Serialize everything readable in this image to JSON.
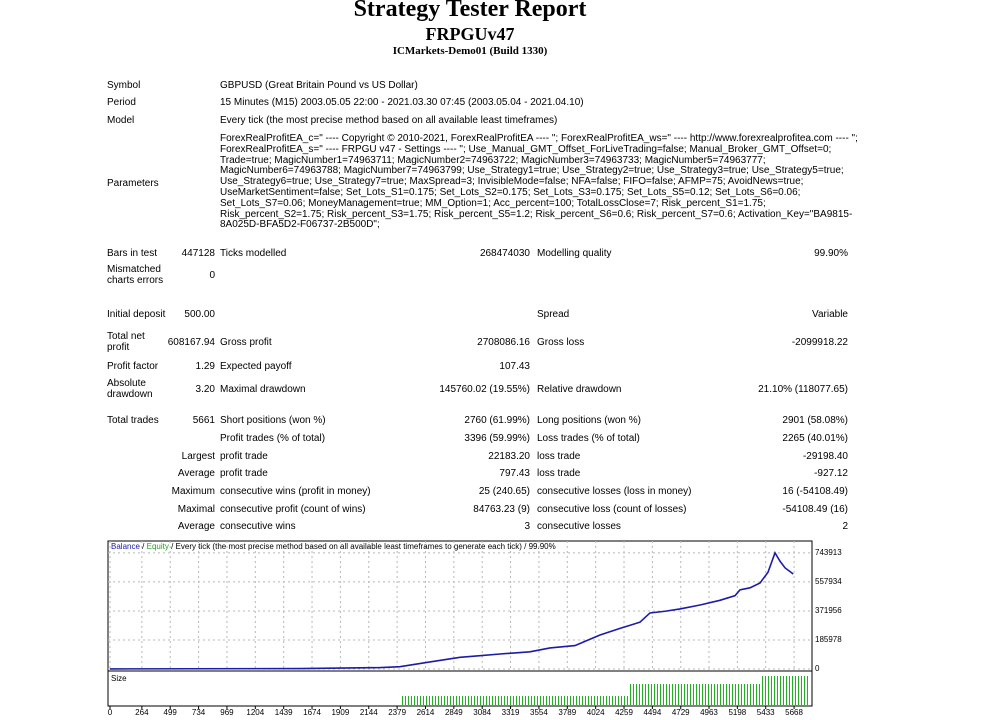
{
  "header": {
    "title": "Strategy Tester Report",
    "expert": "FRPGUv47",
    "server": "ICMarkets-Demo01 (Build 1330)"
  },
  "info": [
    {
      "label": "Symbol",
      "value": "GBPUSD (Great Britain Pound vs US Dollar)"
    },
    {
      "label": "Period",
      "value": "15 Minutes (M15) 2003.05.05 22:00 - 2021.03.30 07:45 (2003.05.04 - 2021.04.10)"
    },
    {
      "label": "Model",
      "value": "Every tick (the most precise method based on all available least timeframes)"
    }
  ],
  "parameters": {
    "label": "Parameters",
    "lines": [
      "ForexRealProfitEA_c=\" ---- Copyright © 2010-2021, ForexRealProfitEA ---- \"; ForexRealProfitEA_ws=\" ---- http://www.forexrealprofitea.com ---- \";",
      "ForexRealProfitEA_s=\" ---- FRPGU v47 - Settings ---- \"; Use_Manual_GMT_Offset_ForLiveTrading=false; Manual_Broker_GMT_Offset=0;",
      "Trade=true; MagicNumber1=74963711; MagicNumber2=74963722; MagicNumber3=74963733; MagicNumber5=74963777;",
      "MagicNumber6=74963788; MagicNumber7=74963799; Use_Strategy1=true; Use_Strategy2=true; Use_Strategy3=true; Use_Strategy5=true;",
      "Use_Strategy6=true; Use_Strategy7=true; MaxSpread=3; InvisibleMode=false; NFA=false; FIFO=false; AFMP=75; AvoidNews=true;",
      "UseMarketSentiment=false; Set_Lots_S1=0.175; Set_Lots_S2=0.175; Set_Lots_S3=0.175; Set_Lots_S5=0.12; Set_Lots_S6=0.06;",
      "Set_Lots_S7=0.06; MoneyManagement=true; MM_Option=1; Acc_percent=100; TotalLossClose=7; Risk_percent_S1=1.75;",
      "Risk_percent_S2=1.75; Risk_percent_S3=1.75; Risk_percent_S5=1.2; Risk_percent_S6=0.6; Risk_percent_S7=0.6; Activation_Key=\"BA9815-",
      "8A025D-BFA5D2-F06737-2B500D\";"
    ]
  },
  "stats": [
    {
      "a": "Bars in test",
      "b": "447128",
      "c": "Ticks modelled",
      "d": "268474030",
      "e": "Modelling quality",
      "f": "99.90%"
    },
    {
      "a": "Mismatched charts errors",
      "b": "0"
    },
    {
      "a": "Initial deposit",
      "b": "500.00",
      "e": "Spread",
      "f": "Variable"
    },
    {
      "a": "Total net profit",
      "b": "608167.94",
      "c": "Gross profit",
      "d": "2708086.16",
      "e": "Gross loss",
      "f": "-2099918.22"
    },
    {
      "a": "Profit factor",
      "b": "1.29",
      "c": "Expected payoff",
      "d": "107.43"
    },
    {
      "a": "Absolute drawdown",
      "b": "3.20",
      "c": "Maximal drawdown",
      "d": "145760.02 (19.55%)",
      "e": "Relative drawdown",
      "f": "21.10% (118077.65)"
    },
    {
      "a": "Total trades",
      "b": "5661",
      "c": "Short positions (won %)",
      "d": "2760 (61.99%)",
      "e": "Long positions (won %)",
      "f": "2901 (58.08%)"
    },
    {
      "c": "Profit trades (% of total)",
      "d": "3396 (59.99%)",
      "e": "Loss trades (% of total)",
      "f": "2265 (40.01%)"
    },
    {
      "b": "Largest",
      "c": "profit trade",
      "d": "22183.20",
      "e": "loss trade",
      "f": "-29198.40"
    },
    {
      "b": "Average",
      "c": "profit trade",
      "d": "797.43",
      "e": "loss trade",
      "f": "-927.12"
    },
    {
      "b": "Maximum",
      "c": "consecutive wins (profit in money)",
      "d": "25 (240.65)",
      "e": "consecutive losses (loss in money)",
      "f": "16 (-54108.49)"
    },
    {
      "b": "Maximal",
      "c": "consecutive profit (count of wins)",
      "d": "84763.23 (9)",
      "e": "consecutive loss (count of losses)",
      "f": "-54108.49 (16)"
    },
    {
      "b": "Average",
      "c": "consecutive wins",
      "d": "3",
      "e": "consecutive losses",
      "f": "2"
    }
  ],
  "chart": {
    "type": "line",
    "legend_balance": "Balance",
    "legend_separator": "/",
    "legend_equity": "Equity",
    "legend_note": "/ Every tick (the most precise method based on all available least timeframes to generate each tick) / 99.90%",
    "size_label": "Size",
    "x": [
      0,
      1574,
      2237,
      2403,
      2651,
      2900,
      3066,
      3231,
      3480,
      3646,
      3853,
      4060,
      4226,
      4391,
      4474,
      4599,
      4723,
      4889,
      5054,
      5179,
      5220,
      5303,
      5386,
      5452,
      5510,
      5552,
      5593,
      5661
    ],
    "series": [
      {
        "name": "Balance",
        "color": "#1c1ca8",
        "values": [
          500,
          3000,
          9000,
          15000,
          45000,
          75000,
          85000,
          96000,
          110000,
          135000,
          150000,
          218000,
          260000,
          300000,
          359000,
          370000,
          385000,
          410000,
          440000,
          470000,
          507000,
          520000,
          551000,
          620000,
          744000,
          690000,
          648000,
          608668
        ]
      }
    ],
    "xlim": [
      0,
      5800
    ],
    "ylim": [
      0,
      820000
    ],
    "xticks": [
      0,
      264,
      499,
      734,
      969,
      1204,
      1439,
      1674,
      1909,
      2144,
      2379,
      2614,
      2849,
      3084,
      3319,
      3554,
      3789,
      4024,
      4259,
      4494,
      4729,
      4963,
      5198,
      5433,
      5668
    ],
    "yticks": [
      0,
      185978,
      371956,
      557934,
      743913
    ],
    "grid": true
  }
}
